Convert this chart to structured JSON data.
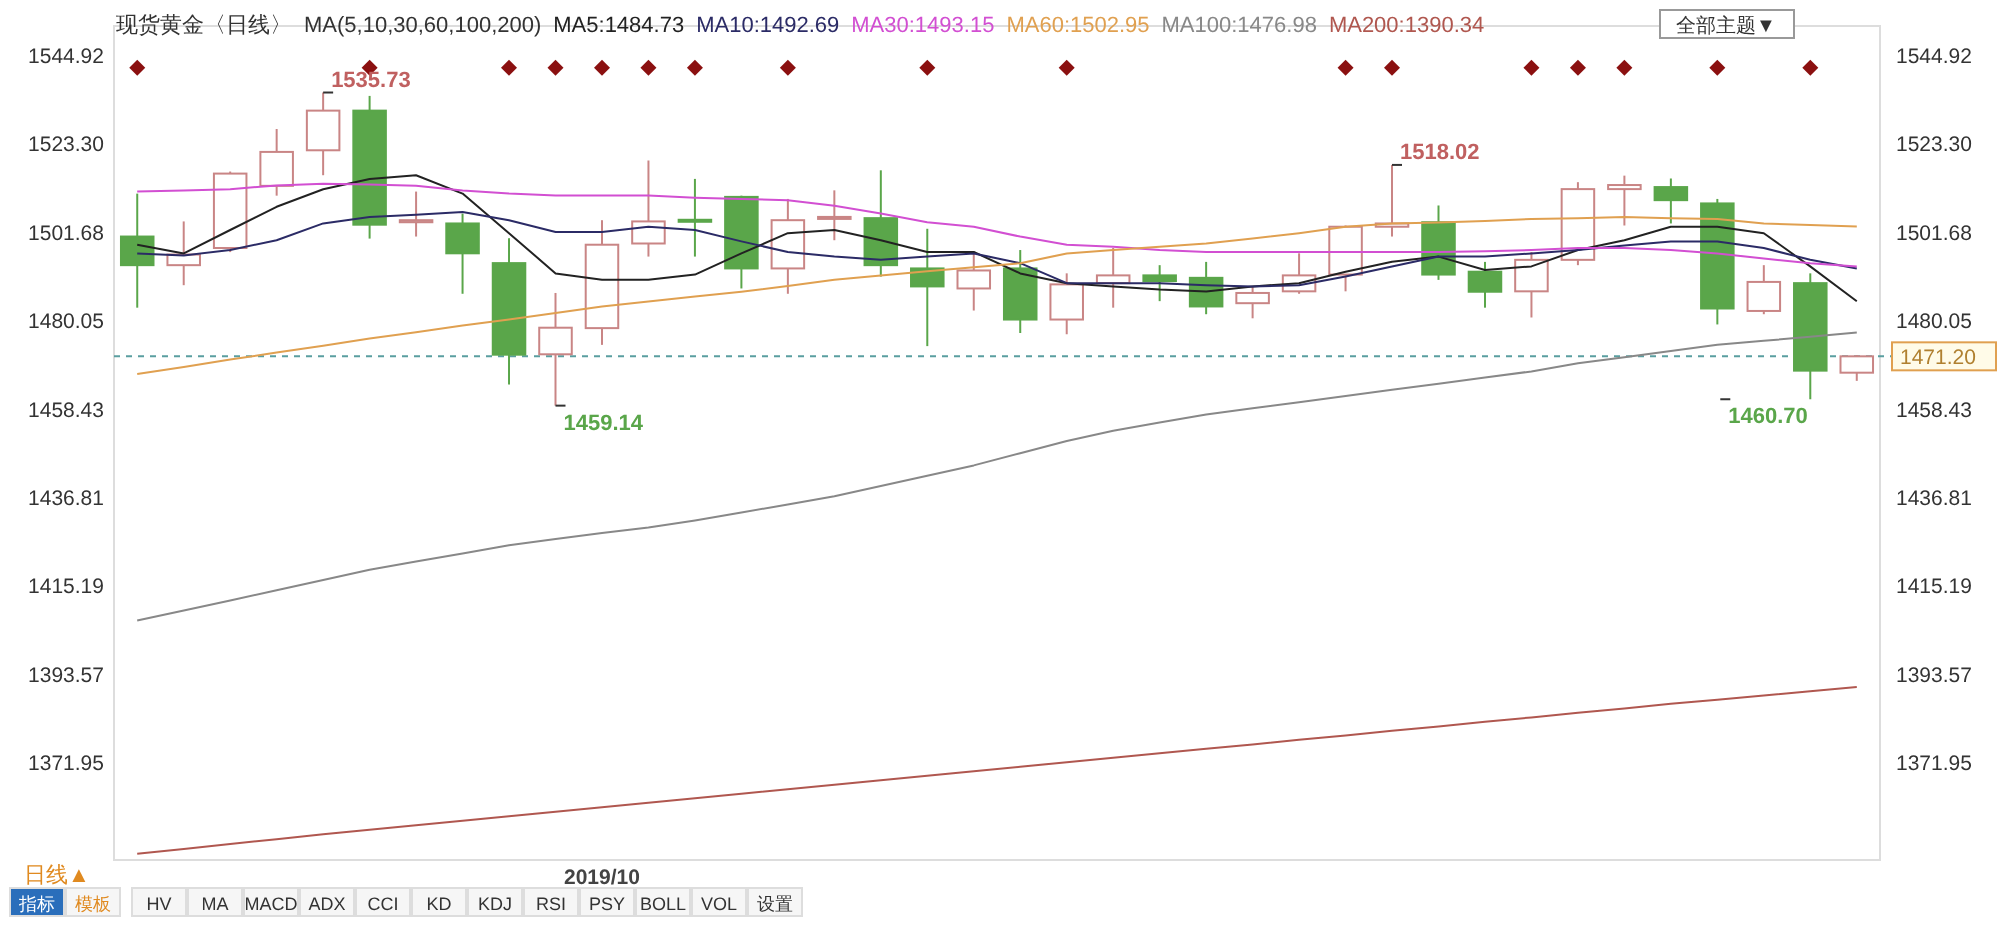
{
  "chart_data": {
    "type": "candlestick",
    "title": "现货黄金〈日线〉",
    "legend_title": "MA(5,10,30,60,100,200)",
    "legend": "top",
    "categories": [
      null,
      null,
      null,
      null,
      null,
      null,
      null,
      null,
      null,
      null,
      "2019/10",
      null,
      null,
      null,
      null,
      null,
      null,
      null,
      null,
      null,
      null,
      null,
      null,
      null,
      null,
      null,
      null,
      null,
      null,
      null,
      null,
      null,
      null,
      null,
      null,
      null,
      null,
      null
    ],
    "ohlc": [
      [
        1500.5,
        1511.0,
        1483.1,
        1493.5
      ],
      [
        1493.5,
        1504.2,
        1488.6,
        1496.1
      ],
      [
        1497.7,
        1516.4,
        1496.7,
        1515.9
      ],
      [
        1512.9,
        1526.8,
        1510.5,
        1521.2
      ],
      [
        1521.6,
        1535.73,
        1515.5,
        1531.3
      ],
      [
        1531.3,
        1534.9,
        1500.0,
        1503.4
      ],
      [
        1504.0,
        1511.5,
        1500.5,
        1504.5
      ],
      [
        1503.7,
        1506.1,
        1486.5,
        1496.4
      ],
      [
        1494.0,
        1500.1,
        1464.3,
        1471.6
      ],
      [
        1471.7,
        1486.7,
        1459.14,
        1478.2
      ],
      [
        1478.1,
        1504.5,
        1474.0,
        1498.5
      ],
      [
        1498.8,
        1519.1,
        1495.6,
        1504.2
      ],
      [
        1504.6,
        1514.6,
        1495.6,
        1504.3
      ],
      [
        1510.2,
        1510.5,
        1487.8,
        1492.7
      ],
      [
        1492.7,
        1509.7,
        1486.5,
        1504.5
      ],
      [
        1505.0,
        1511.8,
        1499.6,
        1505.3
      ],
      [
        1505.0,
        1516.7,
        1490.7,
        1493.5
      ],
      [
        1492.7,
        1502.4,
        1473.7,
        1488.3
      ],
      [
        1487.8,
        1496.4,
        1482.4,
        1492.2
      ],
      [
        1492.7,
        1497.2,
        1476.9,
        1480.2
      ],
      [
        1480.2,
        1491.5,
        1476.6,
        1488.8
      ],
      [
        1489.1,
        1497.7,
        1483.1,
        1491.0
      ],
      [
        1491.0,
        1493.5,
        1484.7,
        1489.6
      ],
      [
        1490.4,
        1494.3,
        1481.5,
        1483.4
      ],
      [
        1484.2,
        1488.3,
        1480.5,
        1486.7
      ],
      [
        1487.1,
        1496.4,
        1486.5,
        1491.0
      ],
      [
        1491.2,
        1503.2,
        1487.1,
        1502.9
      ],
      [
        1502.9,
        1518.02,
        1500.5,
        1503.7
      ],
      [
        1504.0,
        1508.1,
        1489.9,
        1491.2
      ],
      [
        1491.9,
        1494.3,
        1483.1,
        1487.0
      ],
      [
        1487.1,
        1496.7,
        1480.7,
        1494.8
      ],
      [
        1494.8,
        1513.8,
        1493.5,
        1512.1
      ],
      [
        1512.1,
        1515.4,
        1503.2,
        1513.1
      ],
      [
        1512.6,
        1514.7,
        1503.7,
        1509.4
      ],
      [
        1508.6,
        1509.7,
        1479.0,
        1482.9
      ],
      [
        1482.3,
        1493.5,
        1481.5,
        1489.4
      ],
      [
        1489.1,
        1491.5,
        1460.7,
        1467.7
      ],
      [
        1467.2,
        1471.5,
        1465.2,
        1471.2
      ]
    ],
    "colors": [
      "#5aa64a",
      "#c98585",
      "#c98585",
      "#c98585",
      "#c98585",
      "#5aa64a",
      "#c98585",
      "#5aa64a",
      "#5aa64a",
      "#c98585",
      "#c98585",
      "#c98585",
      "#5aa64a",
      "#5aa64a",
      "#c98585",
      "#c98585",
      "#5aa64a",
      "#5aa64a",
      "#c98585",
      "#5aa64a",
      "#c98585",
      "#c98585",
      "#5aa64a",
      "#5aa64a",
      "#c98585",
      "#c98585",
      "#c98585",
      "#c98585",
      "#5aa64a",
      "#5aa64a",
      "#c98585",
      "#c98585",
      "#c98585",
      "#5aa64a",
      "#5aa64a",
      "#c98585",
      "#5aa64a",
      "#c98585"
    ],
    "series": [
      {
        "type": "line",
        "name": "MA5:1484.73",
        "color": "#222222",
        "values": [
          1498.5,
          1496.4,
          1502.1,
          1507.8,
          1512.1,
          1514.6,
          1515.5,
          1511.0,
          1501.3,
          1491.5,
          1489.9,
          1489.9,
          1491.2,
          1496.4,
          1501.3,
          1502.1,
          1499.6,
          1496.7,
          1496.7,
          1491.5,
          1489.1,
          1488.3,
          1487.5,
          1487.1,
          1488.3,
          1489.1,
          1491.9,
          1494.3,
          1495.6,
          1492.3,
          1493.2,
          1497.2,
          1499.6,
          1502.9,
          1502.9,
          1501.3,
          1493.2,
          1484.7
        ]
      },
      {
        "type": "line",
        "name": "MA10:1492.69",
        "color": "#2b2b66",
        "values": [
          1496.4,
          1495.9,
          1497.2,
          1499.6,
          1503.7,
          1505.3,
          1505.8,
          1506.5,
          1504.5,
          1501.6,
          1501.6,
          1502.9,
          1502.1,
          1499.3,
          1496.7,
          1495.6,
          1494.8,
          1495.6,
          1496.4,
          1494.0,
          1489.1,
          1489.1,
          1489.1,
          1488.6,
          1488.3,
          1488.6,
          1490.7,
          1493.2,
          1495.6,
          1495.6,
          1496.4,
          1497.2,
          1498.3,
          1499.3,
          1499.3,
          1497.7,
          1494.8,
          1492.7
        ]
      },
      {
        "type": "line",
        "name": "MA30:1493.15",
        "color": "#d24fd2",
        "values": [
          1511.5,
          1511.8,
          1512.1,
          1513.0,
          1513.4,
          1513.2,
          1512.9,
          1511.8,
          1511.0,
          1510.5,
          1510.5,
          1510.5,
          1510.0,
          1509.7,
          1509.4,
          1508.0,
          1506.1,
          1504.0,
          1502.9,
          1500.5,
          1498.5,
          1498.0,
          1497.2,
          1496.7,
          1496.7,
          1496.7,
          1496.7,
          1496.7,
          1496.7,
          1496.9,
          1497.2,
          1497.7,
          1497.7,
          1497.2,
          1496.4,
          1495.1,
          1494.0,
          1493.2
        ]
      },
      {
        "type": "line",
        "name": "MA60:1502.95",
        "color": "#e0a050",
        "values": [
          1466.9,
          1468.6,
          1470.4,
          1472.1,
          1473.8,
          1475.6,
          1477.1,
          1478.7,
          1480.2,
          1481.8,
          1483.4,
          1484.6,
          1485.8,
          1487.0,
          1488.4,
          1489.9,
          1491.0,
          1492.0,
          1493.0,
          1494.0,
          1496.4,
          1497.2,
          1498.0,
          1498.8,
          1500.0,
          1501.3,
          1502.9,
          1503.7,
          1503.9,
          1504.3,
          1504.8,
          1505.0,
          1505.3,
          1505.0,
          1504.8,
          1503.7,
          1503.3,
          1503.0
        ]
      },
      {
        "type": "line",
        "name": "MA100:1476.98",
        "color": "#888888",
        "values": [
          1406.6,
          1409.0,
          1411.5,
          1414.0,
          1416.5,
          1419.0,
          1421.0,
          1423.0,
          1425.0,
          1426.5,
          1428.0,
          1429.3,
          1431.0,
          1433.0,
          1435.0,
          1437.0,
          1439.5,
          1442.0,
          1444.5,
          1447.5,
          1450.5,
          1453.0,
          1455.0,
          1457.0,
          1458.5,
          1460.0,
          1461.5,
          1463.0,
          1464.5,
          1466.0,
          1467.5,
          1469.5,
          1471.0,
          1472.5,
          1474.0,
          1475.0,
          1476.0,
          1477.0
        ]
      },
      {
        "type": "line",
        "name": "MA200:1390.34",
        "color": "#b0574f",
        "values": [
          1349.5,
          1350.7,
          1351.9,
          1353.1,
          1354.3,
          1355.4,
          1356.5,
          1357.6,
          1358.7,
          1359.8,
          1360.9,
          1362.0,
          1363.1,
          1364.2,
          1365.3,
          1366.4,
          1367.5,
          1368.6,
          1369.7,
          1370.8,
          1371.9,
          1373.0,
          1374.1,
          1375.2,
          1376.3,
          1377.4,
          1378.5,
          1379.6,
          1380.7,
          1381.8,
          1382.9,
          1384.0,
          1385.1,
          1386.2,
          1387.2,
          1388.2,
          1389.3,
          1390.3
        ]
      },
      {
        "type": "scatter",
        "marker": "diamond",
        "color": "#8b1010",
        "values": [
          1541.8,
          null,
          null,
          null,
          null,
          1541.8,
          null,
          null,
          1541.8,
          1541.8,
          1541.8,
          1541.8,
          1541.8,
          null,
          1541.8,
          null,
          null,
          1541.8,
          null,
          null,
          1541.8,
          null,
          null,
          null,
          null,
          null,
          1541.8,
          1541.8,
          null,
          null,
          1541.8,
          1541.8,
          1541.8,
          null,
          1541.8,
          null,
          1541.8,
          null
        ]
      }
    ],
    "ylim": [
      1348,
      1552
    ],
    "yticks": [
      1371.95,
      1393.57,
      1415.19,
      1436.81,
      1458.43,
      1480.05,
      1501.68,
      {
        "value": 1523.3,
        "label": "1523.30"
      },
      1544.92
    ],
    "y2lim": [
      1348,
      1552
    ],
    "y2ticks": [
      1371.95,
      1393.57,
      1415.19,
      1436.81,
      1458.43,
      1480.05,
      1501.68,
      {
        "value": 1523.3,
        "label": "1523.30"
      },
      1544.92
    ],
    "ref_lines": [
      {
        "axis": "y2",
        "value": 1471.2,
        "label": "1471.20",
        "color": "#5a9ea0",
        "line_style": "dashed"
      }
    ],
    "annotations": [
      "1535.73",
      "1459.14",
      "1518.02",
      "1460.70",
      "全部主题▼",
      "日线▲",
      "指标",
      "模板",
      "HV",
      "MA",
      "MACD",
      "ADX",
      "CCI",
      "KD",
      "KDJ",
      "RSI",
      "PSY",
      "BOLL",
      "VOL",
      "设置"
    ]
  }
}
